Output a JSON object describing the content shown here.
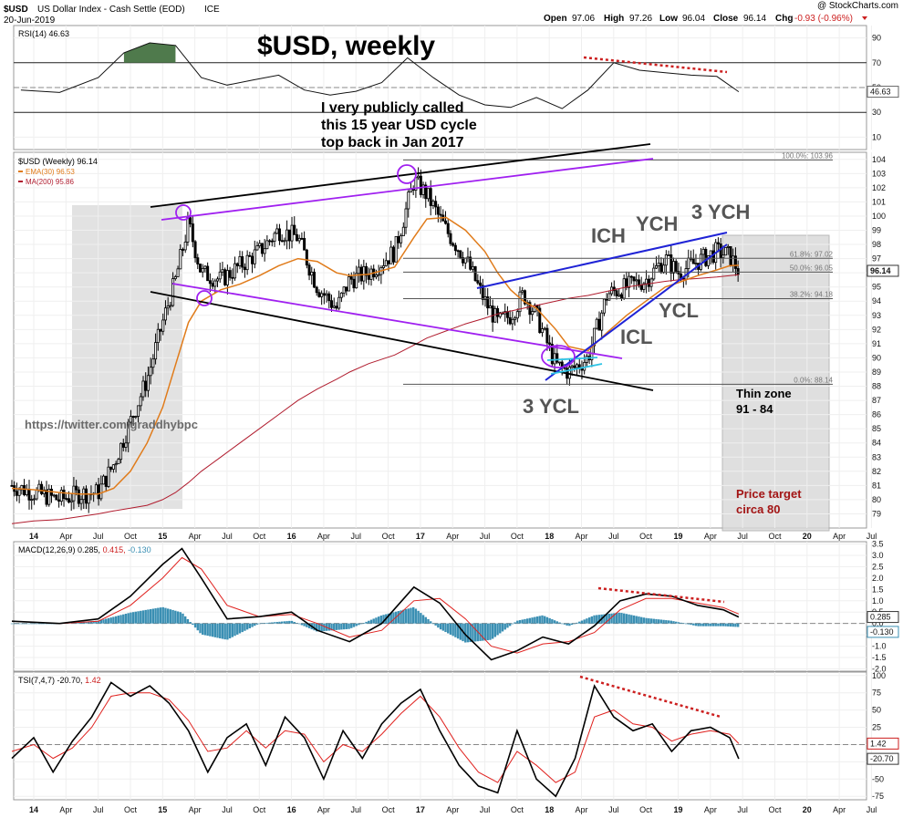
{
  "header": {
    "symbol": "$USD",
    "name": "US Dollar Index - Cash Settle (EOD)",
    "exchange": "ICE",
    "date": "20-Jun-2019",
    "watermark": "@ StockCharts.com",
    "ohlc_open_label": "Open",
    "ohlc_open": "97.06",
    "ohlc_high_label": "High",
    "ohlc_high": "97.26",
    "ohlc_low_label": "Low",
    "ohlc_low": "96.04",
    "ohlc_close_label": "Close",
    "ohlc_close": "96.14",
    "ohlc_chg_label": "Chg",
    "ohlc_chg": "-0.93 (-0.96%)"
  },
  "annotations": {
    "title": "$USD, weekly",
    "callout_1": "I very publicly called",
    "callout_2": "this 15 year USD cycle",
    "callout_3": "top back in Jan 2017",
    "twitter": "https://twitter.com/graddhybpc",
    "ich": "ICH",
    "ych": "YCH",
    "ych3": "3 YCH",
    "ycl": "YCL",
    "icl": "ICL",
    "ycl3": "3 YCL",
    "thin_zone_1": "Thin zone",
    "thin_zone_2": "91 - 84",
    "target_1": "Price target",
    "target_2": "circa 80"
  },
  "colors": {
    "up": "#000000",
    "down": "#000000",
    "ema": "#e07b1a",
    "ma200": "#b01c2e",
    "purple": "#a020f0",
    "blue": "#1f23d6",
    "cyan": "#2ec4e6",
    "red_dotted": "#cc1f1f",
    "rsi_fill": "#4f7a4c",
    "macd_hist": "#3a8fb3",
    "zone_gray": "#d8d8d8"
  },
  "chart_data": [
    {
      "panel": "RSI",
      "type": "line",
      "legend": "RSI(14) 46.63",
      "value_badge": "46.63",
      "ylim": [
        0,
        100
      ],
      "y_ticks": [
        "90",
        "70",
        "50",
        "30",
        "10"
      ],
      "overbought": 70,
      "oversold": 30,
      "x_dates": [
        2013.9,
        2014.2,
        2014.5,
        2014.7,
        2014.9,
        2015.1,
        2015.3,
        2015.5,
        2015.7,
        2015.9,
        2016.1,
        2016.3,
        2016.5,
        2016.7,
        2016.9,
        2017.1,
        2017.3,
        2017.5,
        2017.7,
        2017.9,
        2018.1,
        2018.3,
        2018.5,
        2018.7,
        2018.9,
        2019.1,
        2019.3,
        2019.47
      ],
      "values": [
        48,
        46,
        58,
        78,
        86,
        84,
        58,
        52,
        56,
        60,
        48,
        44,
        47,
        54,
        74,
        58,
        44,
        36,
        34,
        42,
        33,
        48,
        70,
        64,
        62,
        60,
        59,
        46.63
      ]
    },
    {
      "panel": "Price",
      "type": "candlestick",
      "legend_main": "$USD (Weekly) 96.14",
      "legend_ema": "EMA(30) 96.53",
      "legend_ma": "MA(200) 95.86",
      "value_badge": "96.14",
      "ylim": [
        78,
        104.5
      ],
      "y_ticks": [
        "104",
        "103",
        "102",
        "101",
        "100",
        "99",
        "98",
        "97",
        "96",
        "95",
        "94",
        "93",
        "92",
        "91",
        "90",
        "89",
        "88",
        "87",
        "86",
        "85",
        "84",
        "83",
        "82",
        "81",
        "80",
        "79"
      ],
      "fib_levels": [
        {
          "label": "100.0%: 103.96",
          "value": 103.96
        },
        {
          "label": "61.8%: 97.02",
          "value": 97.02
        },
        {
          "label": "50.0%: 96.05",
          "value": 96.05
        },
        {
          "label": "38.2%: 94.18",
          "value": 94.18
        },
        {
          "label": "0.0%: 88.14",
          "value": 88.14
        }
      ],
      "x_dates": [
        2013.83,
        2014.0,
        2014.2,
        2014.35,
        2014.5,
        2014.62,
        2014.75,
        2014.88,
        2015.0,
        2015.1,
        2015.2,
        2015.3,
        2015.45,
        2015.6,
        2015.75,
        2015.9,
        2016.05,
        2016.2,
        2016.35,
        2016.45,
        2016.6,
        2016.8,
        2016.95,
        2017.05,
        2017.2,
        2017.35,
        2017.5,
        2017.6,
        2017.7,
        2017.8,
        2017.9,
        2018.05,
        2018.15,
        2018.3,
        2018.45,
        2018.6,
        2018.75,
        2018.9,
        2019.0,
        2019.15,
        2019.3,
        2019.4,
        2019.47
      ],
      "close": [
        81.0,
        80.5,
        80.0,
        80.4,
        80.5,
        82.5,
        85.5,
        88.5,
        92.5,
        95.5,
        99.5,
        96.0,
        95.5,
        96.5,
        97.5,
        99.0,
        98.5,
        95.0,
        93.5,
        95.5,
        96.0,
        97.5,
        102.5,
        101.5,
        99.0,
        97.0,
        94.0,
        92.5,
        93.0,
        94.5,
        93.0,
        89.5,
        89.0,
        90.0,
        94.5,
        95.0,
        95.5,
        97.0,
        96.0,
        96.8,
        97.5,
        97.2,
        96.14
      ],
      "ema30": [
        80.8,
        80.7,
        80.5,
        80.4,
        80.4,
        80.8,
        82.0,
        84.0,
        86.5,
        89.5,
        92.5,
        94.0,
        94.8,
        95.2,
        95.8,
        96.5,
        97.0,
        96.8,
        96.0,
        95.8,
        95.9,
        96.4,
        98.5,
        99.8,
        99.9,
        99.0,
        97.5,
        96.0,
        94.8,
        94.0,
        93.5,
        92.0,
        90.8,
        90.5,
        91.8,
        93.0,
        94.0,
        95.0,
        95.3,
        95.8,
        96.2,
        96.5,
        96.53
      ],
      "ma200": [
        78.3,
        78.5,
        78.6,
        78.8,
        79.0,
        79.2,
        79.4,
        79.6,
        80.0,
        80.5,
        81.2,
        82.0,
        83.0,
        84.0,
        85.0,
        86.0,
        87.0,
        87.8,
        88.5,
        89.0,
        89.6,
        90.2,
        90.9,
        91.4,
        91.9,
        92.4,
        92.8,
        93.1,
        93.3,
        93.5,
        93.7,
        94.0,
        94.2,
        94.4,
        94.7,
        95.0,
        95.2,
        95.4,
        95.5,
        95.6,
        95.7,
        95.8,
        95.86
      ]
    },
    {
      "panel": "MACD",
      "type": "line",
      "legend": "MACD(12,26,9) 0.285,",
      "legend_signal": "0.415,",
      "legend_hist": "-0.130",
      "value_badge_1": "0.285",
      "value_badge_2": "-0.130",
      "ylim": [
        -2.1,
        3.6
      ],
      "y_ticks": [
        "3.5",
        "3.0",
        "2.5",
        "2.0",
        "1.5",
        "1.0",
        "0.5",
        "0.0",
        "-0.5",
        "-1.0",
        "-1.5",
        "-2.0"
      ],
      "x_dates": [
        2013.83,
        2014.2,
        2014.5,
        2014.75,
        2015.0,
        2015.15,
        2015.3,
        2015.5,
        2015.75,
        2016.0,
        2016.2,
        2016.45,
        2016.7,
        2016.95,
        2017.15,
        2017.35,
        2017.55,
        2017.75,
        2017.95,
        2018.15,
        2018.35,
        2018.55,
        2018.75,
        2018.95,
        2019.15,
        2019.35,
        2019.47
      ],
      "macd": [
        0.1,
        0.0,
        0.2,
        1.2,
        2.6,
        3.3,
        2.0,
        0.2,
        0.3,
        0.5,
        -0.3,
        -0.8,
        0.0,
        1.6,
        0.9,
        -0.5,
        -1.6,
        -1.2,
        -0.6,
        -0.9,
        -0.1,
        1.0,
        1.3,
        1.2,
        0.8,
        0.6,
        0.285
      ],
      "signal": [
        0.1,
        0.0,
        0.1,
        0.8,
        2.0,
        2.9,
        2.4,
        0.8,
        0.3,
        0.4,
        0.0,
        -0.6,
        -0.3,
        1.0,
        1.1,
        0.2,
        -1.0,
        -1.3,
        -0.9,
        -0.8,
        -0.4,
        0.6,
        1.1,
        1.1,
        0.9,
        0.7,
        0.415
      ]
    },
    {
      "panel": "TSI",
      "type": "line",
      "legend": "TSI(7,4,7) -20.70,",
      "legend_signal": "1.42",
      "value_badge_1": "1.42",
      "value_badge_2": "-20.70",
      "ylim": [
        -80,
        105
      ],
      "y_ticks": [
        "100",
        "75",
        "50",
        "25",
        "0",
        "-25",
        "-50",
        "-75"
      ],
      "x_dates": [
        2013.83,
        2014.0,
        2014.15,
        2014.3,
        2014.45,
        2014.6,
        2014.75,
        2014.9,
        2015.05,
        2015.2,
        2015.35,
        2015.5,
        2015.65,
        2015.8,
        2015.95,
        2016.1,
        2016.25,
        2016.4,
        2016.55,
        2016.7,
        2016.85,
        2017.0,
        2017.15,
        2017.3,
        2017.45,
        2017.6,
        2017.75,
        2017.9,
        2018.05,
        2018.2,
        2018.35,
        2018.5,
        2018.65,
        2018.8,
        2018.95,
        2019.1,
        2019.25,
        2019.4,
        2019.47
      ],
      "tsi": [
        -20,
        10,
        -40,
        5,
        40,
        90,
        70,
        85,
        60,
        20,
        -40,
        10,
        30,
        -30,
        40,
        10,
        -50,
        20,
        -20,
        30,
        60,
        80,
        20,
        -30,
        -60,
        -70,
        20,
        -50,
        -75,
        -20,
        85,
        40,
        20,
        30,
        -10,
        20,
        25,
        10,
        -20.7
      ],
      "signal": [
        -10,
        0,
        -20,
        -5,
        25,
        70,
        75,
        75,
        65,
        35,
        -10,
        -5,
        20,
        -5,
        20,
        15,
        -25,
        0,
        -10,
        15,
        45,
        70,
        40,
        -5,
        -40,
        -55,
        -10,
        -30,
        -55,
        -40,
        40,
        50,
        30,
        25,
        5,
        15,
        20,
        15,
        1.42
      ]
    }
  ],
  "x_axis_labels": [
    {
      "label": "14",
      "t": 2014.0,
      "bold": true
    },
    {
      "label": "Apr",
      "t": 2014.25
    },
    {
      "label": "Jul",
      "t": 2014.5
    },
    {
      "label": "Oct",
      "t": 2014.75
    },
    {
      "label": "15",
      "t": 2015.0,
      "bold": true
    },
    {
      "label": "Apr",
      "t": 2015.25
    },
    {
      "label": "Jul",
      "t": 2015.5
    },
    {
      "label": "Oct",
      "t": 2015.75
    },
    {
      "label": "16",
      "t": 2016.0,
      "bold": true
    },
    {
      "label": "Apr",
      "t": 2016.25
    },
    {
      "label": "Jul",
      "t": 2016.5
    },
    {
      "label": "Oct",
      "t": 2016.75
    },
    {
      "label": "17",
      "t": 2017.0,
      "bold": true
    },
    {
      "label": "Apr",
      "t": 2017.25
    },
    {
      "label": "Jul",
      "t": 2017.5
    },
    {
      "label": "Oct",
      "t": 2017.75
    },
    {
      "label": "18",
      "t": 2018.0,
      "bold": true
    },
    {
      "label": "Apr",
      "t": 2018.25
    },
    {
      "label": "Jul",
      "t": 2018.5
    },
    {
      "label": "Oct",
      "t": 2018.75
    },
    {
      "label": "19",
      "t": 2019.0,
      "bold": true
    },
    {
      "label": "Apr",
      "t": 2019.25
    },
    {
      "label": "Jul",
      "t": 2019.5
    },
    {
      "label": "Oct",
      "t": 2019.75
    },
    {
      "label": "20",
      "t": 2020.0,
      "bold": true
    },
    {
      "label": "Apr",
      "t": 2020.25
    },
    {
      "label": "Jul",
      "t": 2020.5
    }
  ]
}
